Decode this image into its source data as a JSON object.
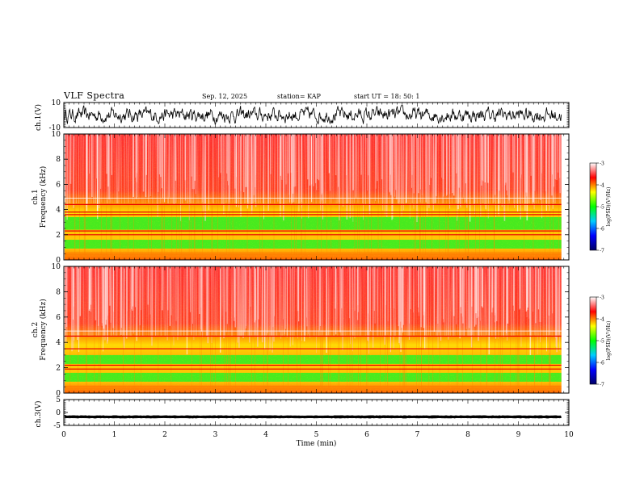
{
  "header": {
    "title": "VLF Spectra",
    "date": "Sep. 12, 2025",
    "station": "station= KAP",
    "start": "start  UT =   18: 50: 1"
  },
  "chart_data": [
    {
      "type": "line",
      "name": "ch1-waveform",
      "ylabel": "ch.1(V)",
      "ylim": [
        -10,
        10
      ],
      "yticks": [
        "10",
        "-10"
      ],
      "xlim": [
        0,
        9.85
      ],
      "description_values": {
        "mean": 0,
        "amplitude_approx": 4
      }
    },
    {
      "type": "heatmap",
      "name": "ch1-spectrogram",
      "ylabel": "ch.1\nFrequency (kHz)",
      "ylabel_lines": [
        "ch.1",
        "Frequency  (kHz)"
      ],
      "ylim": [
        0,
        10
      ],
      "yticks": [
        "0",
        "2",
        "4",
        "6",
        "8",
        "10"
      ],
      "xlim": [
        0,
        9.85
      ],
      "green_bands_khz": [
        [
          0.9,
          1.6
        ],
        [
          2.4,
          3.4
        ]
      ],
      "red_lines_khz": [
        2.0,
        2.3,
        3.6,
        3.8,
        4.4
      ]
    },
    {
      "type": "heatmap",
      "name": "ch2-spectrogram",
      "ylabel_lines": [
        "ch.2",
        "Frequency  (kHz)"
      ],
      "ylim": [
        0,
        10
      ],
      "yticks": [
        "0",
        "2",
        "4",
        "6",
        "8",
        "10"
      ],
      "xlim": [
        0,
        9.85
      ],
      "green_bands_khz": [
        [
          0.9,
          1.6
        ],
        [
          2.3,
          3.0
        ]
      ],
      "red_lines_khz": [
        1.9,
        2.2,
        3.5,
        4.5
      ]
    },
    {
      "type": "line",
      "name": "ch3-waveform",
      "ylabel": "ch.3(V)",
      "ylim": [
        -5,
        5
      ],
      "yticks": [
        "5",
        "0",
        "-5"
      ],
      "xlim": [
        0,
        9.85
      ],
      "description_values": {
        "level": -1.7,
        "thickness": 0.9
      }
    }
  ],
  "x_axis": {
    "label": "Time  (min)",
    "ticks": [
      "0",
      "1",
      "2",
      "3",
      "4",
      "5",
      "6",
      "7",
      "8",
      "9",
      "10"
    ],
    "range": [
      0,
      10
    ]
  },
  "colorbar": {
    "label": "log(PSD)(V²/Hz)",
    "ticks": [
      "-3",
      "-4",
      "-5",
      "-6",
      "-7"
    ],
    "range": [
      -7,
      -3
    ],
    "colors": [
      "#000066",
      "#0000ff",
      "#00ccff",
      "#00ff00",
      "#ffff00",
      "#ff0000",
      "#ffffff"
    ]
  }
}
